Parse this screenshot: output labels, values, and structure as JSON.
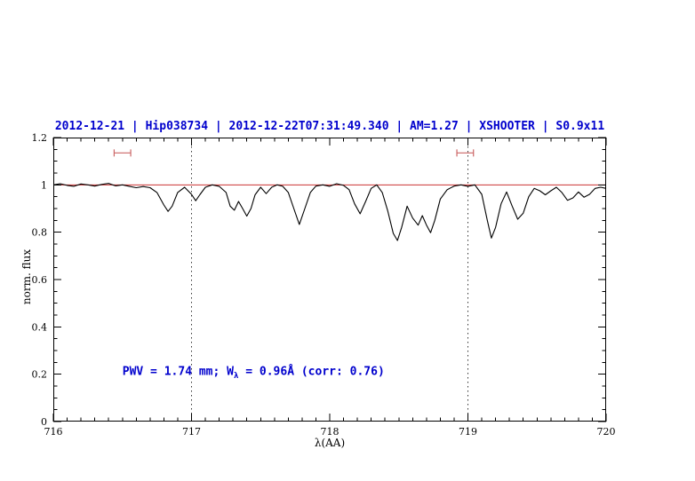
{
  "colors": {
    "title_blue": "#0000cd",
    "annotation_blue": "#0000cd",
    "continuum_red": "#cc3333",
    "marker_red": "#cc6666",
    "spectrum_black": "#000000"
  },
  "chart_data": {
    "type": "line",
    "title": "2012-12-21 | Hip038734 | 2012-12-22T07:31:49.340 | AM=1.27 | XSHOOTER | S0.9x11",
    "xlabel": "λ(AA)",
    "ylabel": "norm. flux",
    "xlim": [
      716,
      720
    ],
    "ylim": [
      0,
      1.2
    ],
    "x_ticks": [
      716,
      717,
      718,
      719,
      720
    ],
    "y_ticks": [
      0,
      0.2,
      0.4,
      0.6,
      0.8,
      1,
      1.2
    ],
    "x_minor_step": 0.1,
    "y_minor_step": 0.05,
    "grid": false,
    "legend": "none",
    "vlines": [
      {
        "x": 717,
        "style": "dotted"
      },
      {
        "x": 719,
        "style": "dotted"
      }
    ],
    "markers": [
      {
        "type": "hrange",
        "x1": 716.44,
        "x2": 716.56,
        "y": 1.135,
        "color": "#cc6666"
      },
      {
        "type": "hrange",
        "x1": 718.92,
        "x2": 719.04,
        "y": 1.135,
        "color": "#cc6666"
      }
    ],
    "annotation": {
      "text_pre": "PWV = 1.74 mm; W",
      "sub": "λ",
      "text_post": " = 0.96Å (corr: 0.76)",
      "x": 716.5,
      "y": 0.2,
      "color": "#0000cd"
    },
    "series": [
      {
        "name": "continuum",
        "color": "#cc3333",
        "points": [
          [
            716.0,
            1.0
          ],
          [
            720.0,
            1.0
          ]
        ]
      },
      {
        "name": "spectrum",
        "color": "#000000",
        "points": [
          [
            716.0,
            1.0
          ],
          [
            716.05,
            1.005
          ],
          [
            716.1,
            0.998
          ],
          [
            716.15,
            0.994
          ],
          [
            716.2,
            1.004
          ],
          [
            716.25,
            1.0
          ],
          [
            716.3,
            0.995
          ],
          [
            716.35,
            1.002
          ],
          [
            716.4,
            1.006
          ],
          [
            716.45,
            0.996
          ],
          [
            716.5,
            1.0
          ],
          [
            716.55,
            0.994
          ],
          [
            716.6,
            0.988
          ],
          [
            716.65,
            0.993
          ],
          [
            716.7,
            0.988
          ],
          [
            716.75,
            0.968
          ],
          [
            716.8,
            0.915
          ],
          [
            716.83,
            0.888
          ],
          [
            716.86,
            0.91
          ],
          [
            716.9,
            0.968
          ],
          [
            716.95,
            0.99
          ],
          [
            717.0,
            0.96
          ],
          [
            717.03,
            0.933
          ],
          [
            717.06,
            0.958
          ],
          [
            717.1,
            0.99
          ],
          [
            717.15,
            1.0
          ],
          [
            717.2,
            0.994
          ],
          [
            717.25,
            0.968
          ],
          [
            717.28,
            0.91
          ],
          [
            717.31,
            0.893
          ],
          [
            717.34,
            0.93
          ],
          [
            717.37,
            0.9
          ],
          [
            717.4,
            0.868
          ],
          [
            717.43,
            0.9
          ],
          [
            717.46,
            0.958
          ],
          [
            717.5,
            0.99
          ],
          [
            717.54,
            0.963
          ],
          [
            717.58,
            0.99
          ],
          [
            717.62,
            1.0
          ],
          [
            717.66,
            0.994
          ],
          [
            717.7,
            0.968
          ],
          [
            717.74,
            0.9
          ],
          [
            717.78,
            0.833
          ],
          [
            717.82,
            0.9
          ],
          [
            717.86,
            0.968
          ],
          [
            717.9,
            0.995
          ],
          [
            717.95,
            1.0
          ],
          [
            718.0,
            0.994
          ],
          [
            718.05,
            1.005
          ],
          [
            718.1,
            0.998
          ],
          [
            718.14,
            0.98
          ],
          [
            718.18,
            0.92
          ],
          [
            718.22,
            0.878
          ],
          [
            718.26,
            0.93
          ],
          [
            718.3,
            0.985
          ],
          [
            718.34,
            1.0
          ],
          [
            718.38,
            0.968
          ],
          [
            718.42,
            0.89
          ],
          [
            718.46,
            0.795
          ],
          [
            718.49,
            0.765
          ],
          [
            718.52,
            0.82
          ],
          [
            718.56,
            0.91
          ],
          [
            718.6,
            0.86
          ],
          [
            718.64,
            0.83
          ],
          [
            718.67,
            0.87
          ],
          [
            718.7,
            0.83
          ],
          [
            718.73,
            0.798
          ],
          [
            718.76,
            0.85
          ],
          [
            718.8,
            0.94
          ],
          [
            718.85,
            0.98
          ],
          [
            718.9,
            0.995
          ],
          [
            718.95,
            1.0
          ],
          [
            719.0,
            0.994
          ],
          [
            719.05,
            1.0
          ],
          [
            719.1,
            0.96
          ],
          [
            719.14,
            0.85
          ],
          [
            719.17,
            0.775
          ],
          [
            719.2,
            0.82
          ],
          [
            719.24,
            0.92
          ],
          [
            719.28,
            0.97
          ],
          [
            719.32,
            0.91
          ],
          [
            719.36,
            0.855
          ],
          [
            719.4,
            0.88
          ],
          [
            719.44,
            0.95
          ],
          [
            719.48,
            0.985
          ],
          [
            719.52,
            0.975
          ],
          [
            719.56,
            0.958
          ],
          [
            719.6,
            0.975
          ],
          [
            719.64,
            0.99
          ],
          [
            719.68,
            0.968
          ],
          [
            719.72,
            0.935
          ],
          [
            719.76,
            0.945
          ],
          [
            719.8,
            0.97
          ],
          [
            719.84,
            0.948
          ],
          [
            719.88,
            0.96
          ],
          [
            719.92,
            0.985
          ],
          [
            719.96,
            0.99
          ],
          [
            720.0,
            0.985
          ]
        ]
      }
    ]
  }
}
